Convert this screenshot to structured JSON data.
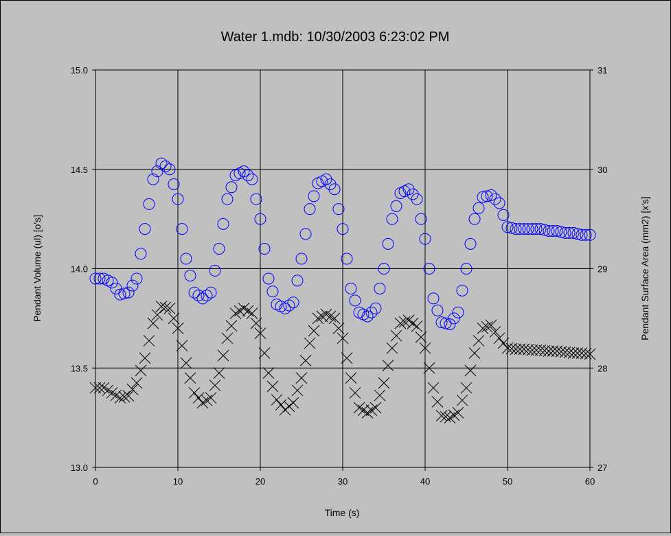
{
  "chart_data": {
    "type": "scatter",
    "title": "Water 1.mdb: 10/30/2003 6:23:02 PM",
    "xlabel": "Time (s)",
    "ylabel": "Pendant Volume (ul) [o's]",
    "y2label": "Pendant Surface Area (mm2) [x's]",
    "xlim": [
      0,
      60
    ],
    "ylim": [
      13.0,
      15.0
    ],
    "y2lim": [
      27,
      31
    ],
    "x_ticks": [
      "0",
      "10",
      "20",
      "30",
      "40",
      "50",
      "60"
    ],
    "y_ticks": [
      "13.0",
      "13.5",
      "14.0",
      "14.5",
      "15.0"
    ],
    "y2_ticks": [
      "27",
      "28",
      "29",
      "30",
      "31"
    ],
    "grid": true,
    "colors": {
      "volume": "#0000ff",
      "area": "#000000",
      "background": "#c0c0c0",
      "grid": "#000000"
    },
    "series": [
      {
        "axis": "left",
        "marker": "circle",
        "x": [
          0,
          1,
          2,
          3,
          4,
          5,
          6,
          7,
          8,
          9,
          10,
          11,
          12,
          13,
          14,
          15,
          16,
          17,
          18,
          19,
          20,
          21,
          22,
          23,
          24,
          25,
          26,
          27,
          28,
          29,
          30,
          31,
          32,
          33,
          34,
          35,
          36,
          37,
          38,
          39,
          40,
          41,
          42,
          43,
          44,
          45,
          46,
          47,
          48,
          49,
          50,
          51,
          52,
          53,
          54,
          55,
          56,
          57,
          58,
          59,
          60
        ],
        "y": [
          13.95,
          13.95,
          13.93,
          13.87,
          13.88,
          13.95,
          14.2,
          14.45,
          14.53,
          14.5,
          14.35,
          14.05,
          13.88,
          13.85,
          13.88,
          14.1,
          14.35,
          14.47,
          14.49,
          14.45,
          14.25,
          13.95,
          13.82,
          13.8,
          13.83,
          14.05,
          14.3,
          14.43,
          14.45,
          14.4,
          14.2,
          13.9,
          13.78,
          13.76,
          13.8,
          14.0,
          14.25,
          14.38,
          14.4,
          14.35,
          14.15,
          13.85,
          13.73,
          13.72,
          13.78,
          14.0,
          14.25,
          14.36,
          14.37,
          14.33,
          14.21,
          14.2,
          14.2,
          14.2,
          14.2,
          14.19,
          14.19,
          14.18,
          14.18,
          14.17,
          14.17
        ]
      },
      {
        "axis": "right",
        "marker": "x",
        "x": [
          0,
          1,
          2,
          3,
          4,
          5,
          6,
          7,
          8,
          9,
          10,
          11,
          12,
          13,
          14,
          15,
          16,
          17,
          18,
          19,
          20,
          21,
          22,
          23,
          24,
          25,
          26,
          27,
          28,
          29,
          30,
          31,
          32,
          33,
          34,
          35,
          36,
          37,
          38,
          39,
          40,
          41,
          42,
          43,
          44,
          45,
          46,
          47,
          48,
          49,
          50,
          51,
          52,
          53,
          54,
          55,
          56,
          57,
          58,
          59,
          60
        ],
        "y": [
          27.8,
          27.8,
          27.75,
          27.7,
          27.72,
          27.85,
          28.1,
          28.45,
          28.62,
          28.6,
          28.4,
          28.05,
          27.75,
          27.65,
          27.7,
          27.95,
          28.3,
          28.55,
          28.6,
          28.55,
          28.35,
          27.95,
          27.68,
          27.58,
          27.65,
          27.9,
          28.25,
          28.5,
          28.54,
          28.5,
          28.3,
          27.9,
          27.6,
          27.55,
          27.6,
          27.85,
          28.2,
          28.45,
          28.48,
          28.42,
          28.2,
          27.8,
          27.52,
          27.5,
          27.55,
          27.8,
          28.15,
          28.4,
          28.43,
          28.3,
          28.2,
          28.19,
          28.19,
          28.18,
          28.18,
          28.17,
          28.17,
          28.16,
          28.15,
          28.15,
          28.14
        ]
      }
    ]
  }
}
